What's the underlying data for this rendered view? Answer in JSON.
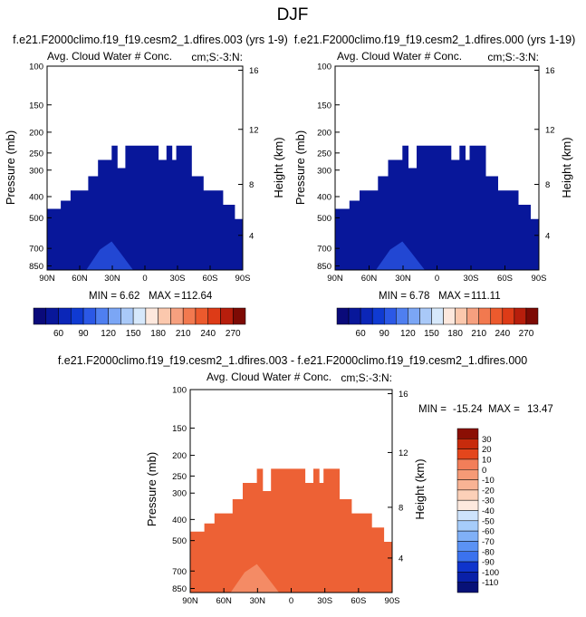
{
  "figure": {
    "title": "DJF"
  },
  "palettes": {
    "abs": [
      "#0a0a7a",
      "#08179a",
      "#0b26b8",
      "#0f3ad2",
      "#2b58e6",
      "#4f7ff0",
      "#7ba6f5",
      "#a9c9f8",
      "#d6e8fb",
      "#fde8dd",
      "#fbc8ad",
      "#f6a07f",
      "#f2794f",
      "#ec5a2d",
      "#dd3b17",
      "#b71e0c",
      "#7d0a04"
    ],
    "diff": [
      "#071177",
      "#0920a8",
      "#0f34cc",
      "#2153e3",
      "#3b72ee",
      "#5b92f4",
      "#80b0f7",
      "#a6ccfa",
      "#cde3fc",
      "#ecf4fe",
      "#fde9de",
      "#fcd0b8",
      "#f9b394",
      "#f69a76",
      "#f27e59",
      "#ed6135",
      "#e4461c",
      "#c72b0c",
      "#8b0f04"
    ]
  },
  "chart_data": [
    {
      "type": "heatmap",
      "name": "panel-1",
      "title": "f.e21.F2000climo.f19_f19.cesm2_1.dfires.003 (yrs 1-9)",
      "left_label": "Avg. Cloud Water # Conc.",
      "right_label": "cm;S:-3:N:",
      "ylabel": "Pressure (mb)",
      "ylabel_right": "Height (km)",
      "x_ticks": [
        "90N",
        "60N",
        "30N",
        "0",
        "30S",
        "60S",
        "90S"
      ],
      "y_ticks": [
        "100",
        "150",
        "200",
        "250",
        "300",
        "400",
        "500",
        "700",
        "850"
      ],
      "y_ticks_right": [
        "16",
        "12",
        "8",
        "4"
      ],
      "stats": {
        "min_label": "MIN =",
        "min": "6.62",
        "max_label": "MAX =",
        "max": "112.64"
      },
      "colorbar": {
        "orientation": "horizontal",
        "labels": [
          "60",
          "90",
          "120",
          "150",
          "180",
          "210",
          "240",
          "270"
        ]
      },
      "fill_index": 1,
      "blob_color": "#2b58e6"
    },
    {
      "type": "heatmap",
      "name": "panel-2",
      "title": "f.e21.F2000climo.f19_f19.cesm2_1.dfires.000 (yrs 1-19)",
      "left_label": "Avg. Cloud Water # Conc.",
      "right_label": "cm;S:-3:N:",
      "ylabel": "Pressure (mb)",
      "ylabel_right": "Height (km)",
      "x_ticks": [
        "90N",
        "60N",
        "30N",
        "0",
        "30S",
        "60S",
        "90S"
      ],
      "y_ticks": [
        "100",
        "150",
        "200",
        "250",
        "300",
        "400",
        "500",
        "700",
        "850"
      ],
      "y_ticks_right": [
        "16",
        "12",
        "8",
        "4"
      ],
      "stats": {
        "min_label": "MIN =",
        "min": "6.78",
        "max_label": "MAX =",
        "max": "111.11"
      },
      "colorbar": {
        "orientation": "horizontal",
        "labels": [
          "60",
          "90",
          "120",
          "150",
          "180",
          "210",
          "240",
          "270"
        ]
      },
      "fill_index": 1,
      "blob_color": "#2b58e6"
    },
    {
      "type": "heatmap",
      "name": "panel-diff",
      "title": "f.e21.F2000climo.f19_f19.cesm2_1.dfires.003 - f.e21.F2000climo.f19_f19.cesm2_1.dfires.000",
      "left_label": "Avg. Cloud Water # Conc.",
      "right_label": "cm;S:-3:N:",
      "ylabel": "Pressure (mb)",
      "ylabel_right": "Height (km)",
      "x_ticks": [
        "90N",
        "60N",
        "30N",
        "0",
        "30S",
        "60S",
        "90S"
      ],
      "y_ticks": [
        "100",
        "150",
        "200",
        "250",
        "300",
        "400",
        "500",
        "700",
        "850"
      ],
      "y_ticks_right": [
        "16",
        "12",
        "8",
        "4"
      ],
      "stats": {
        "min_label": "MIN =",
        "min": "-15.24",
        "max_label": "MAX =",
        "max": "13.47"
      },
      "colorbar": {
        "orientation": "vertical",
        "labels": [
          "30",
          "20",
          "10",
          "0",
          "-10",
          "-20",
          "-30",
          "-40",
          "-50",
          "-60",
          "-70",
          "-80",
          "-90",
          "-100",
          "-110"
        ]
      },
      "fill_index": 15,
      "blob_color": "#f69a76"
    }
  ]
}
